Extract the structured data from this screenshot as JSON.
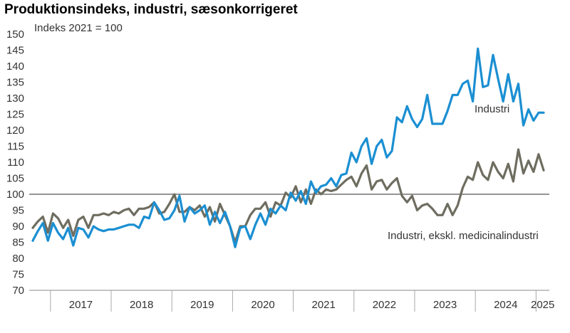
{
  "title": "Produktionsindeks, industri, sæsonkorrigeret",
  "chart_data": {
    "type": "line",
    "title": "Produktionsindeks, industri, sæsonkorrigeret",
    "unit_label": "Indeks 2021 = 100",
    "ylim": [
      70,
      150
    ],
    "yticks": [
      70,
      75,
      80,
      85,
      90,
      95,
      100,
      105,
      110,
      115,
      120,
      125,
      130,
      135,
      140,
      145,
      150
    ],
    "reference_line": 100,
    "year_labels": [
      "2017",
      "2018",
      "2019",
      "2020",
      "2021",
      "2022",
      "2023",
      "2024",
      "2025"
    ],
    "x_start": "2016-09",
    "series": [
      {
        "name": "Industri",
        "color": "#1b8fd2",
        "values": [
          85.5,
          88.5,
          91.0,
          85.5,
          91.0,
          88.0,
          86.0,
          89.5,
          84.0,
          89.5,
          89.0,
          86.5,
          90.0,
          89.0,
          88.5,
          89.0,
          89.0,
          89.5,
          90.0,
          90.5,
          90.5,
          89.5,
          93.0,
          92.5,
          97.5,
          95.0,
          92.0,
          92.5,
          95.0,
          99.5,
          91.5,
          96.0,
          94.0,
          95.0,
          96.5,
          90.5,
          94.5,
          91.0,
          94.5,
          90.0,
          83.5,
          89.5,
          90.0,
          86.0,
          90.5,
          94.0,
          90.5,
          95.5,
          94.0,
          96.5,
          95.0,
          100.5,
          98.0,
          101.0,
          97.0,
          104.0,
          100.5,
          102.5,
          103.0,
          105.0,
          102.5,
          106.0,
          106.5,
          113.0,
          110.0,
          115.0,
          117.5,
          109.5,
          115.0,
          117.0,
          111.5,
          113.5,
          124.0,
          122.5,
          127.5,
          123.5,
          121.0,
          123.5,
          131.0,
          122.0,
          122.0,
          122.0,
          126.0,
          131.0,
          131.0,
          134.5,
          135.5,
          129.0,
          145.5,
          133.5,
          134.0,
          143.5,
          136.0,
          129.0,
          137.5,
          129.0,
          134.5,
          121.5,
          126.5,
          123.0,
          125.5,
          125.5
        ]
      },
      {
        "name": "Industri, ekskl. medicinalindustri",
        "color": "#6e6d60",
        "values": [
          89.5,
          91.5,
          93.0,
          88.0,
          94.0,
          92.5,
          89.5,
          92.0,
          87.0,
          92.0,
          93.0,
          89.5,
          93.5,
          93.5,
          94.0,
          93.5,
          94.5,
          94.0,
          95.0,
          95.5,
          93.5,
          95.5,
          95.5,
          96.0,
          97.5,
          94.0,
          94.5,
          97.0,
          100.0,
          94.5,
          94.5,
          96.0,
          95.0,
          96.5,
          93.0,
          96.0,
          91.5,
          97.0,
          93.5,
          90.0,
          85.0,
          90.0,
          90.0,
          93.5,
          95.5,
          95.5,
          97.5,
          93.0,
          97.5,
          96.5,
          100.5,
          99.0,
          102.5,
          97.5,
          101.5,
          97.0,
          101.5,
          100.0,
          101.5,
          101.0,
          101.5,
          103.0,
          104.5,
          105.5,
          102.5,
          106.5,
          109.0,
          101.5,
          104.0,
          104.5,
          101.5,
          103.5,
          105.0,
          99.5,
          97.5,
          99.5,
          95.0,
          96.5,
          97.0,
          95.5,
          93.5,
          93.5,
          97.0,
          93.5,
          96.5,
          102.0,
          105.5,
          104.5,
          110.0,
          106.0,
          104.5,
          110.0,
          107.0,
          105.0,
          109.5,
          104.0,
          114.0,
          106.5,
          110.5,
          107.0,
          112.5,
          107.5
        ]
      }
    ]
  }
}
